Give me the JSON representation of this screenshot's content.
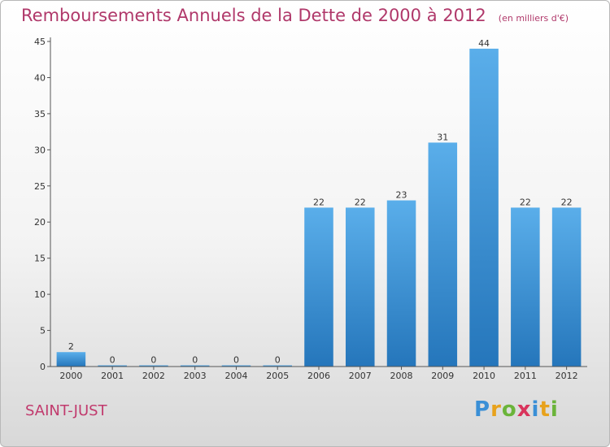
{
  "chart_data": {
    "type": "bar",
    "title": "Remboursements Annuels de la Dette de 2000 à 2012",
    "unit_label": "(en milliers d'€)",
    "categories": [
      "2000",
      "2001",
      "2002",
      "2003",
      "2004",
      "2005",
      "2006",
      "2007",
      "2008",
      "2009",
      "2010",
      "2011",
      "2012"
    ],
    "values": [
      2,
      0,
      0,
      0,
      0,
      0,
      22,
      22,
      23,
      31,
      44,
      22,
      22
    ],
    "ylim": [
      0,
      45
    ],
    "yticks": [
      0,
      5,
      10,
      15,
      20,
      25,
      30,
      35,
      40,
      45
    ],
    "xlabel": "",
    "ylabel": "",
    "bar_color": "#3a8fd6",
    "grid": false,
    "legend": "none"
  },
  "footer": {
    "city": "SAINT-JUST",
    "logo_text": "Proxiti"
  },
  "colors": {
    "title": "#b0386a",
    "city": "#c13a6d"
  }
}
